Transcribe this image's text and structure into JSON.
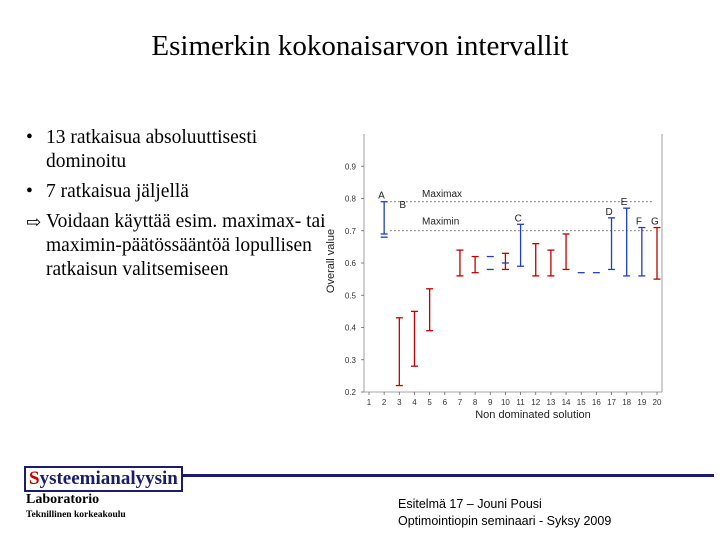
{
  "title": "Esimerkin kokonaisarvon intervallit",
  "bullets": [
    {
      "marker": "•",
      "text": "13 ratkaisua absoluuttisesti dominoitu"
    },
    {
      "marker": "•",
      "text": "7 ratkaisua jäljellä"
    },
    {
      "marker": "⇨",
      "text": "Voidaan käyttää esim. maximax- tai maximin-päätössääntöä lopullisen ratkaisun valitsemiseen"
    }
  ],
  "chart_data": {
    "type": "interval",
    "xlabel": "Non dominated solution",
    "ylabel": "Overall value",
    "x": [
      1,
      2,
      3,
      4,
      5,
      6,
      7,
      8,
      9,
      10,
      11,
      12,
      13,
      14,
      15,
      16,
      17,
      18,
      19,
      20
    ],
    "ylim": [
      0.2,
      1.0
    ],
    "yticks": [
      "0.2",
      "0.3",
      "0.4",
      "0.5",
      "0.6",
      "0.7",
      "0.8",
      "0.9"
    ],
    "grid": false,
    "intervals": [
      {
        "x": 2,
        "low": 0.69,
        "high": 0.79,
        "color": "#1f3fbf",
        "label": "A"
      },
      {
        "x": 3,
        "low": 0.22,
        "high": 0.43,
        "color": "#c00000"
      },
      {
        "x": 4,
        "low": 0.28,
        "high": 0.45,
        "color": "#c00000"
      },
      {
        "x": 5,
        "low": 0.39,
        "high": 0.52,
        "color": "#c00000"
      },
      {
        "x": 7,
        "low": 0.56,
        "high": 0.64,
        "color": "#c00000"
      },
      {
        "x": 8,
        "low": 0.57,
        "high": 0.62,
        "color": "#c00000"
      },
      {
        "x": 10,
        "low": 0.58,
        "high": 0.63,
        "color": "#c00000"
      },
      {
        "x": 11,
        "low": 0.59,
        "high": 0.72,
        "color": "#1f3fbf",
        "label": "C"
      },
      {
        "x": 12,
        "low": 0.56,
        "high": 0.66,
        "color": "#c00000"
      },
      {
        "x": 13,
        "low": 0.56,
        "high": 0.64,
        "color": "#c00000"
      },
      {
        "x": 14,
        "low": 0.58,
        "high": 0.69,
        "color": "#c00000"
      },
      {
        "x": 17,
        "low": 0.58,
        "high": 0.74,
        "color": "#1f3fbf",
        "label": "D"
      },
      {
        "x": 18,
        "low": 0.56,
        "high": 0.77,
        "color": "#1f3fbf",
        "label": "E"
      },
      {
        "x": 19,
        "low": 0.56,
        "high": 0.71,
        "color": "#1f3fbf",
        "label": "F"
      },
      {
        "x": 20,
        "low": 0.55,
        "high": 0.71,
        "color": "#c00000",
        "label": "G"
      }
    ],
    "singles": [
      {
        "x": 2,
        "y": 0.68,
        "color": "#1f3fbf"
      },
      {
        "x": 9,
        "y": 0.62,
        "color": "#1f3fbf"
      },
      {
        "x": 9,
        "y": 0.58,
        "color": "#1f3fbf"
      },
      {
        "x": 10,
        "y": 0.6,
        "color": "#1f3fbf"
      },
      {
        "x": 15,
        "y": 0.57,
        "color": "#1f3fbf"
      },
      {
        "x": 16,
        "y": 0.57,
        "color": "#1f3fbf"
      }
    ],
    "labels": [
      {
        "text": "B",
        "x": 3,
        "y": 0.77
      },
      {
        "text": "Maximax",
        "x": 4.5,
        "y": 0.805
      },
      {
        "text": "Maximin",
        "x": 4.5,
        "y": 0.72
      }
    ],
    "reference_lines": [
      {
        "name": "Maximax",
        "y": 0.79
      },
      {
        "name": "Maximin",
        "y": 0.7
      }
    ]
  },
  "logo": {
    "first_letter": "S",
    "rest": "ysteemianalyysin",
    "line2": "Laboratorio",
    "line3": "Teknillinen korkeakoulu"
  },
  "footer": {
    "line1": "Esitelmä 17 – Jouni Pousi",
    "line2": "Optimointiopin seminaari - Syksy 2009"
  }
}
